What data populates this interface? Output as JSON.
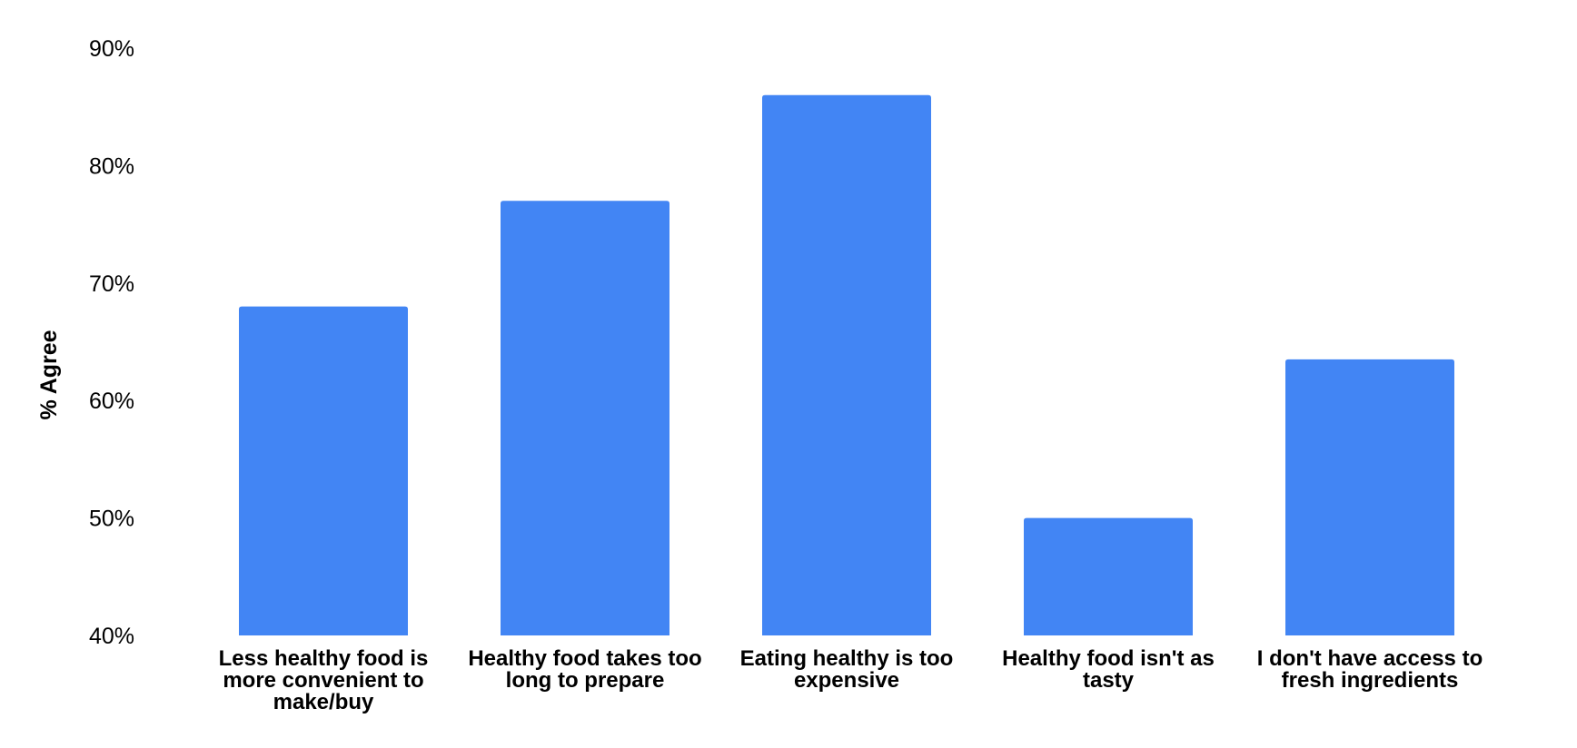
{
  "chart_data": {
    "type": "bar",
    "title": "",
    "xlabel": "",
    "ylabel": "% Agree",
    "ylim": [
      40,
      90
    ],
    "grid": false,
    "y_ticks": [
      "90%",
      "80%",
      "70%",
      "60%",
      "50%",
      "40%"
    ],
    "y_tick_values": [
      90,
      80,
      70,
      60,
      50,
      40
    ],
    "categories": [
      [
        "Less healthy food is",
        "more convenient to",
        "make/buy"
      ],
      [
        "Healthy food takes too",
        "long to prepare"
      ],
      [
        "Eating healthy is too",
        "expensive"
      ],
      [
        "Healthy food isn't as",
        "tasty"
      ],
      [
        "I don't have access to",
        "fresh ingredients"
      ]
    ],
    "values": [
      68,
      77,
      86,
      50,
      63.5
    ],
    "bar_color": "#4285F4"
  }
}
